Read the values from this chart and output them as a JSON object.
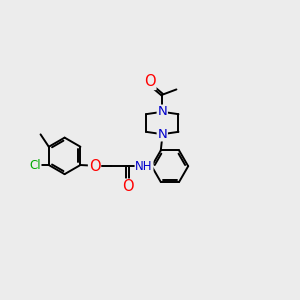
{
  "bg_color": "#ececec",
  "bond_color": "#000000",
  "bond_width": 1.4,
  "atom_colors": {
    "O": "#ff0000",
    "N": "#0000cc",
    "Cl": "#00aa00",
    "C": "#000000",
    "H": "#4a4a4a"
  },
  "font_size": 8.5
}
